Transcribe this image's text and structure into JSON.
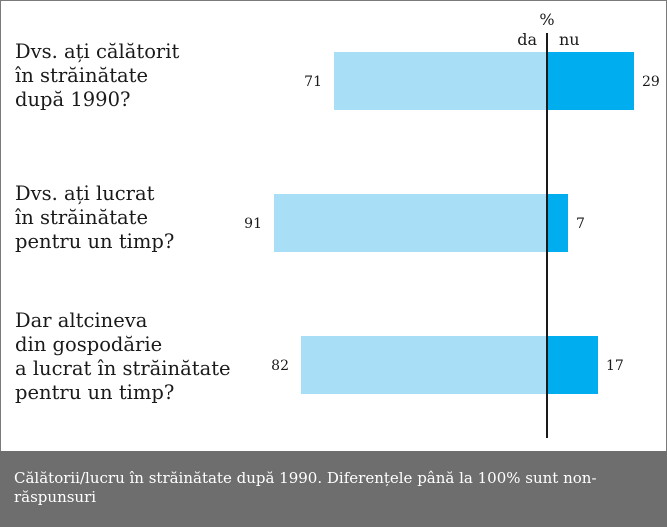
{
  "chart_data": {
    "type": "bar",
    "orientation": "horizontal-diverging",
    "unit_label": "%",
    "categories": [
      [
        "Dvs. ați călătorit",
        "în străinătate",
        "după 1990?"
      ],
      [
        "Dvs. ați lucrat",
        "în străinătate",
        "pentru un timp?"
      ],
      [
        "Dar altcineva",
        "din gospodărie",
        "a lucrat în străinătate",
        "pentru un timp?"
      ]
    ],
    "series": [
      {
        "name": "da",
        "values": [
          71,
          91,
          82
        ],
        "color": "#a8dff7"
      },
      {
        "name": "nu",
        "values": [
          29,
          7,
          17
        ],
        "color": "#00aeef"
      }
    ]
  },
  "caption": "Călătorii/lucru în străinătate după 1990. Diferențele până la 100% sunt non-răspunsuri"
}
